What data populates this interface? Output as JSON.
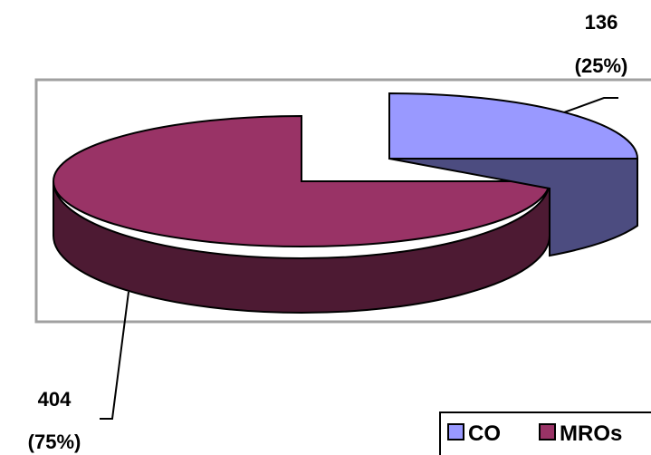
{
  "chart_data": {
    "type": "pie",
    "style": "3d-exploded",
    "series": [
      {
        "name": "CO",
        "value": 136,
        "percent": "25%",
        "label_value": "136",
        "label_percent": "(25%)",
        "color_top": "#9999ff",
        "color_side": "#4c4c80"
      },
      {
        "name": "MROs",
        "value": 404,
        "percent": "75%",
        "label_value": "404",
        "label_percent": "(75%)",
        "color_top": "#993366",
        "color_side": "#4d1a33"
      }
    ],
    "legend_position": "bottom-right"
  }
}
